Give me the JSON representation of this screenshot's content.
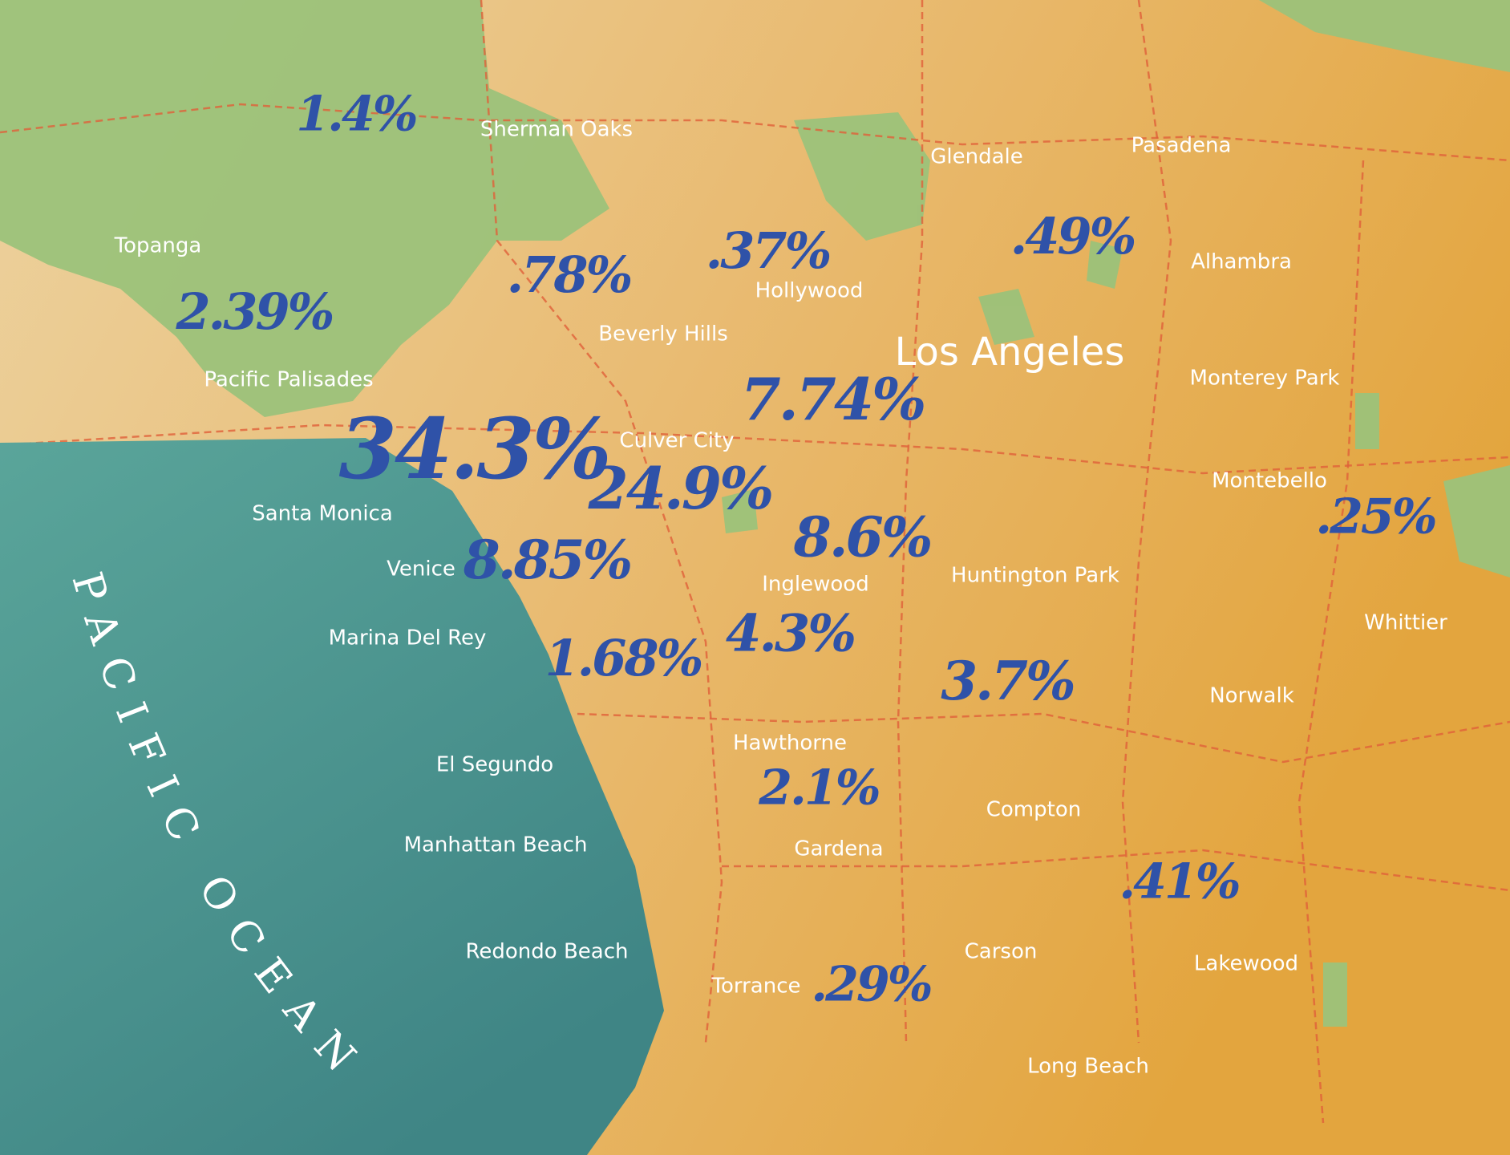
{
  "ocean_label": "PACIFIC OCEAN",
  "city_major": "Los Angeles",
  "places": [
    "Sherman Oaks",
    "Glendale",
    "Pasadena",
    "Topanga",
    "Alhambra",
    "Hollywood",
    "Beverly Hills",
    "Pacific Palisades",
    "Monterey Park",
    "Culver City",
    "Montebello",
    "Santa Monica",
    "Venice",
    "Huntington Park",
    "Inglewood",
    "Whittier",
    "Marina Del Rey",
    "Norwalk",
    "Hawthorne",
    "El Segundo",
    "Compton",
    "Manhattan Beach",
    "Gardena",
    "Carson",
    "Lakewood",
    "Redondo Beach",
    "Torrance",
    "Long Beach"
  ],
  "percentages": [
    "1.4%",
    ".78%",
    ".37%",
    ".49%",
    "2.39%",
    "7.74%",
    "34.3%",
    "24.9%",
    "8.6%",
    ".25%",
    "8.85%",
    "4.3%",
    "1.68%",
    "3.7%",
    "2.1%",
    ".41%",
    ".29%"
  ]
}
